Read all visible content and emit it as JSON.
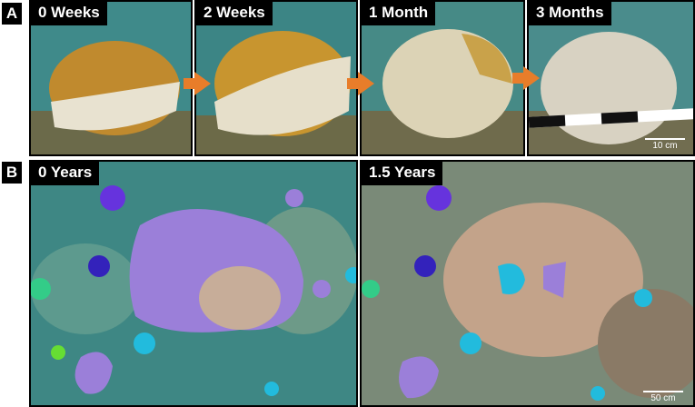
{
  "panels": [
    {
      "label": "A",
      "photos": [
        {
          "caption": "0 Weeks"
        },
        {
          "caption": "2 Weeks"
        },
        {
          "caption": "1 Month"
        },
        {
          "caption": "3 Months",
          "scale_bar": "10 cm"
        }
      ]
    },
    {
      "label": "B",
      "photos": [
        {
          "caption": "0 Years"
        },
        {
          "caption": "1.5 Years",
          "scale_bar": "50 cm"
        }
      ]
    }
  ]
}
